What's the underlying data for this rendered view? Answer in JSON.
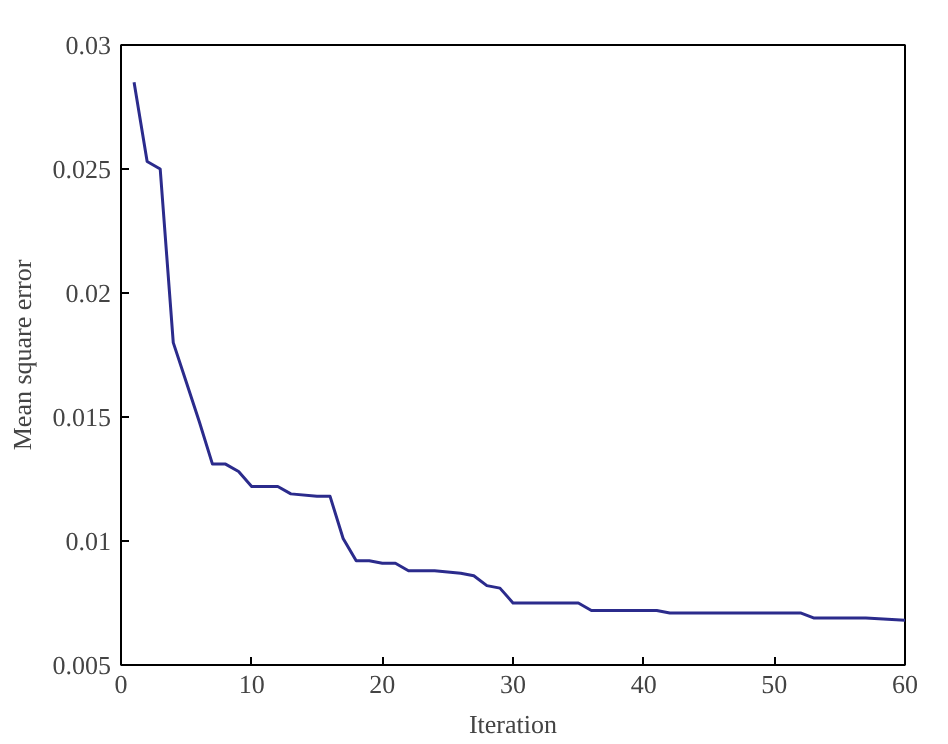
{
  "chart_data": {
    "type": "line",
    "xlabel": "Iteration",
    "ylabel": "Mean square error",
    "xlim": [
      0,
      60
    ],
    "ylim": [
      0.005,
      0.03
    ],
    "xticks": [
      0,
      10,
      20,
      30,
      40,
      50,
      60
    ],
    "yticks": [
      0.005,
      0.01,
      0.015,
      0.02,
      0.025,
      0.03
    ],
    "grid": false,
    "x": [
      1,
      2,
      3,
      4,
      5,
      6,
      7,
      8,
      9,
      10,
      12,
      13,
      15,
      16,
      17,
      18,
      19,
      20,
      21,
      22,
      24,
      26,
      27,
      28,
      29,
      30,
      35,
      36,
      41,
      42,
      52,
      53,
      57,
      60
    ],
    "series": [
      {
        "color": "#2b2b8c",
        "values": [
          0.0285,
          0.0253,
          0.025,
          0.018,
          0.0164,
          0.0148,
          0.0131,
          0.0131,
          0.0128,
          0.0122,
          0.0122,
          0.0119,
          0.0118,
          0.0118,
          0.0101,
          0.0092,
          0.0092,
          0.0091,
          0.0091,
          0.0088,
          0.0088,
          0.0087,
          0.0086,
          0.0082,
          0.0081,
          0.0075,
          0.0075,
          0.0072,
          0.0072,
          0.0071,
          0.0071,
          0.0069,
          0.0069,
          0.0068
        ]
      }
    ]
  }
}
